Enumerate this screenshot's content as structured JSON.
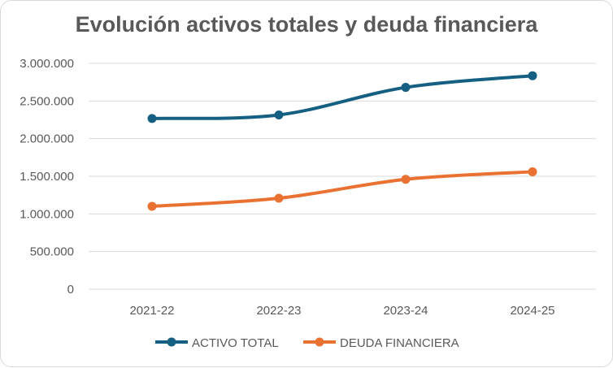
{
  "chart_data": {
    "type": "line",
    "title": "Evolución activos totales y deuda financiera",
    "categories": [
      "2021-22",
      "2022-23",
      "2023-24",
      "2024-25"
    ],
    "series": [
      {
        "name": "ACTIVO TOTAL",
        "color": "#156082",
        "values": [
          2268000,
          2315000,
          2681000,
          2836000
        ]
      },
      {
        "name": "DEUDA FINANCIERA",
        "color": "#E97132",
        "values": [
          1101000,
          1209000,
          1460000,
          1560000
        ]
      }
    ],
    "ylim": [
      0,
      3000000
    ],
    "yticks": [
      "0",
      "500.000",
      "1.000.000",
      "1.500.000",
      "2.000.000",
      "2.500.000",
      "3.000.000"
    ],
    "grid": true,
    "smooth": true,
    "legend": "bottom"
  }
}
